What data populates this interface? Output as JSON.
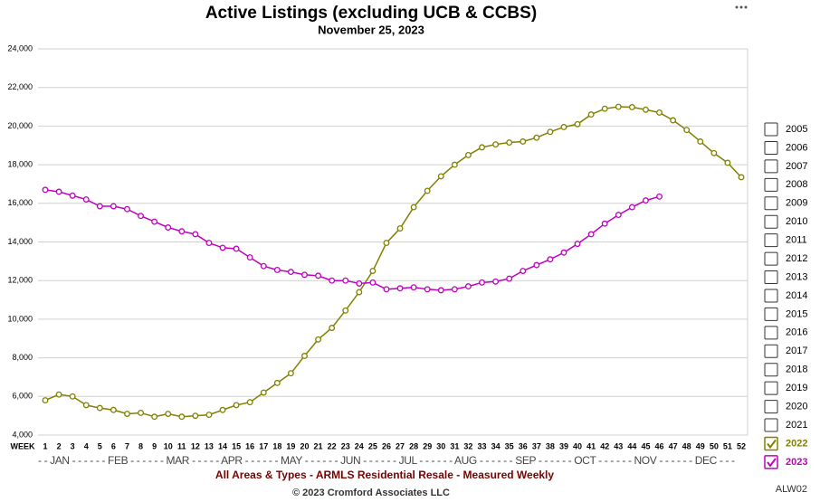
{
  "chart_data": {
    "type": "line",
    "title": "Active Listings (excluding UCB & CCBS)",
    "subtitle": "November 25, 2023",
    "x_axis_label": "WEEK",
    "month_axis": "- - JAN - - - - - - FEB - - - - - - MAR - - - - - APR - - - - - - MAY - - - - - - JUN - - - - - - JUL - - - - - - AUG - - - - - - SEP - - - - - - OCT - - - - - - NOV - - - - - - DEC - - -",
    "caption": "All Areas & Types - ARMLS Residential Resale - Measured Weekly",
    "copyright": "© 2023 Cromford Associates LLC",
    "chart_id": "ALW02",
    "x": [
      1,
      2,
      3,
      4,
      5,
      6,
      7,
      8,
      9,
      10,
      11,
      12,
      13,
      14,
      15,
      16,
      17,
      18,
      19,
      20,
      21,
      22,
      23,
      24,
      25,
      26,
      27,
      28,
      29,
      30,
      31,
      32,
      33,
      34,
      35,
      36,
      37,
      38,
      39,
      40,
      41,
      42,
      43,
      44,
      45,
      46,
      47,
      48,
      49,
      50,
      51,
      52
    ],
    "xlim": [
      1,
      52
    ],
    "ylim": [
      4000,
      24000
    ],
    "yticks": [
      {
        "value": 4000,
        "label": "4,000"
      },
      {
        "value": 6000,
        "label": "6,000"
      },
      {
        "value": 8000,
        "label": "8,000"
      },
      {
        "value": 10000,
        "label": "10,000"
      },
      {
        "value": 12000,
        "label": "12,000"
      },
      {
        "value": 14000,
        "label": "14,000"
      },
      {
        "value": 16000,
        "label": "16,000"
      },
      {
        "value": 18000,
        "label": "18,000"
      },
      {
        "value": 20000,
        "label": "20,000"
      },
      {
        "value": 22000,
        "label": "22,000"
      },
      {
        "value": 24000,
        "label": "24,000"
      }
    ],
    "grid": true,
    "legend_position": "right",
    "legend_unchecked": [
      "2005",
      "2006",
      "2007",
      "2008",
      "2009",
      "2010",
      "2011",
      "2012",
      "2013",
      "2014",
      "2015",
      "2016",
      "2017",
      "2018",
      "2019",
      "2020",
      "2021"
    ],
    "series": [
      {
        "name": "2022",
        "color": "#808000",
        "values": [
          5800,
          6100,
          6000,
          5550,
          5400,
          5300,
          5100,
          5150,
          4950,
          5100,
          4950,
          5000,
          5050,
          5300,
          5550,
          5700,
          6200,
          6700,
          7200,
          8100,
          8950,
          9550,
          10450,
          11400,
          12500,
          13950,
          14700,
          15800,
          16650,
          17400,
          18000,
          18500,
          18900,
          19050,
          19150,
          19200,
          19400,
          19700,
          19950,
          20100,
          20600,
          20900,
          21000,
          20980,
          20850,
          20700,
          20300,
          19800,
          19200,
          18600,
          18100,
          17350
        ]
      },
      {
        "name": "2023",
        "color": "#c000c0",
        "values": [
          16700,
          16600,
          16400,
          16200,
          15850,
          15850,
          15700,
          15350,
          15050,
          14750,
          14550,
          14400,
          13950,
          13700,
          13650,
          13200,
          12750,
          12550,
          12450,
          12300,
          12250,
          12000,
          12000,
          11850,
          11900,
          11550,
          11600,
          11650,
          11550,
          11500,
          11550,
          11700,
          11900,
          11950,
          12100,
          12500,
          12800,
          13100,
          13450,
          13900,
          14400,
          14950,
          15400,
          15800,
          16150,
          16350,
          null,
          null,
          null,
          null,
          null,
          null
        ]
      }
    ]
  }
}
